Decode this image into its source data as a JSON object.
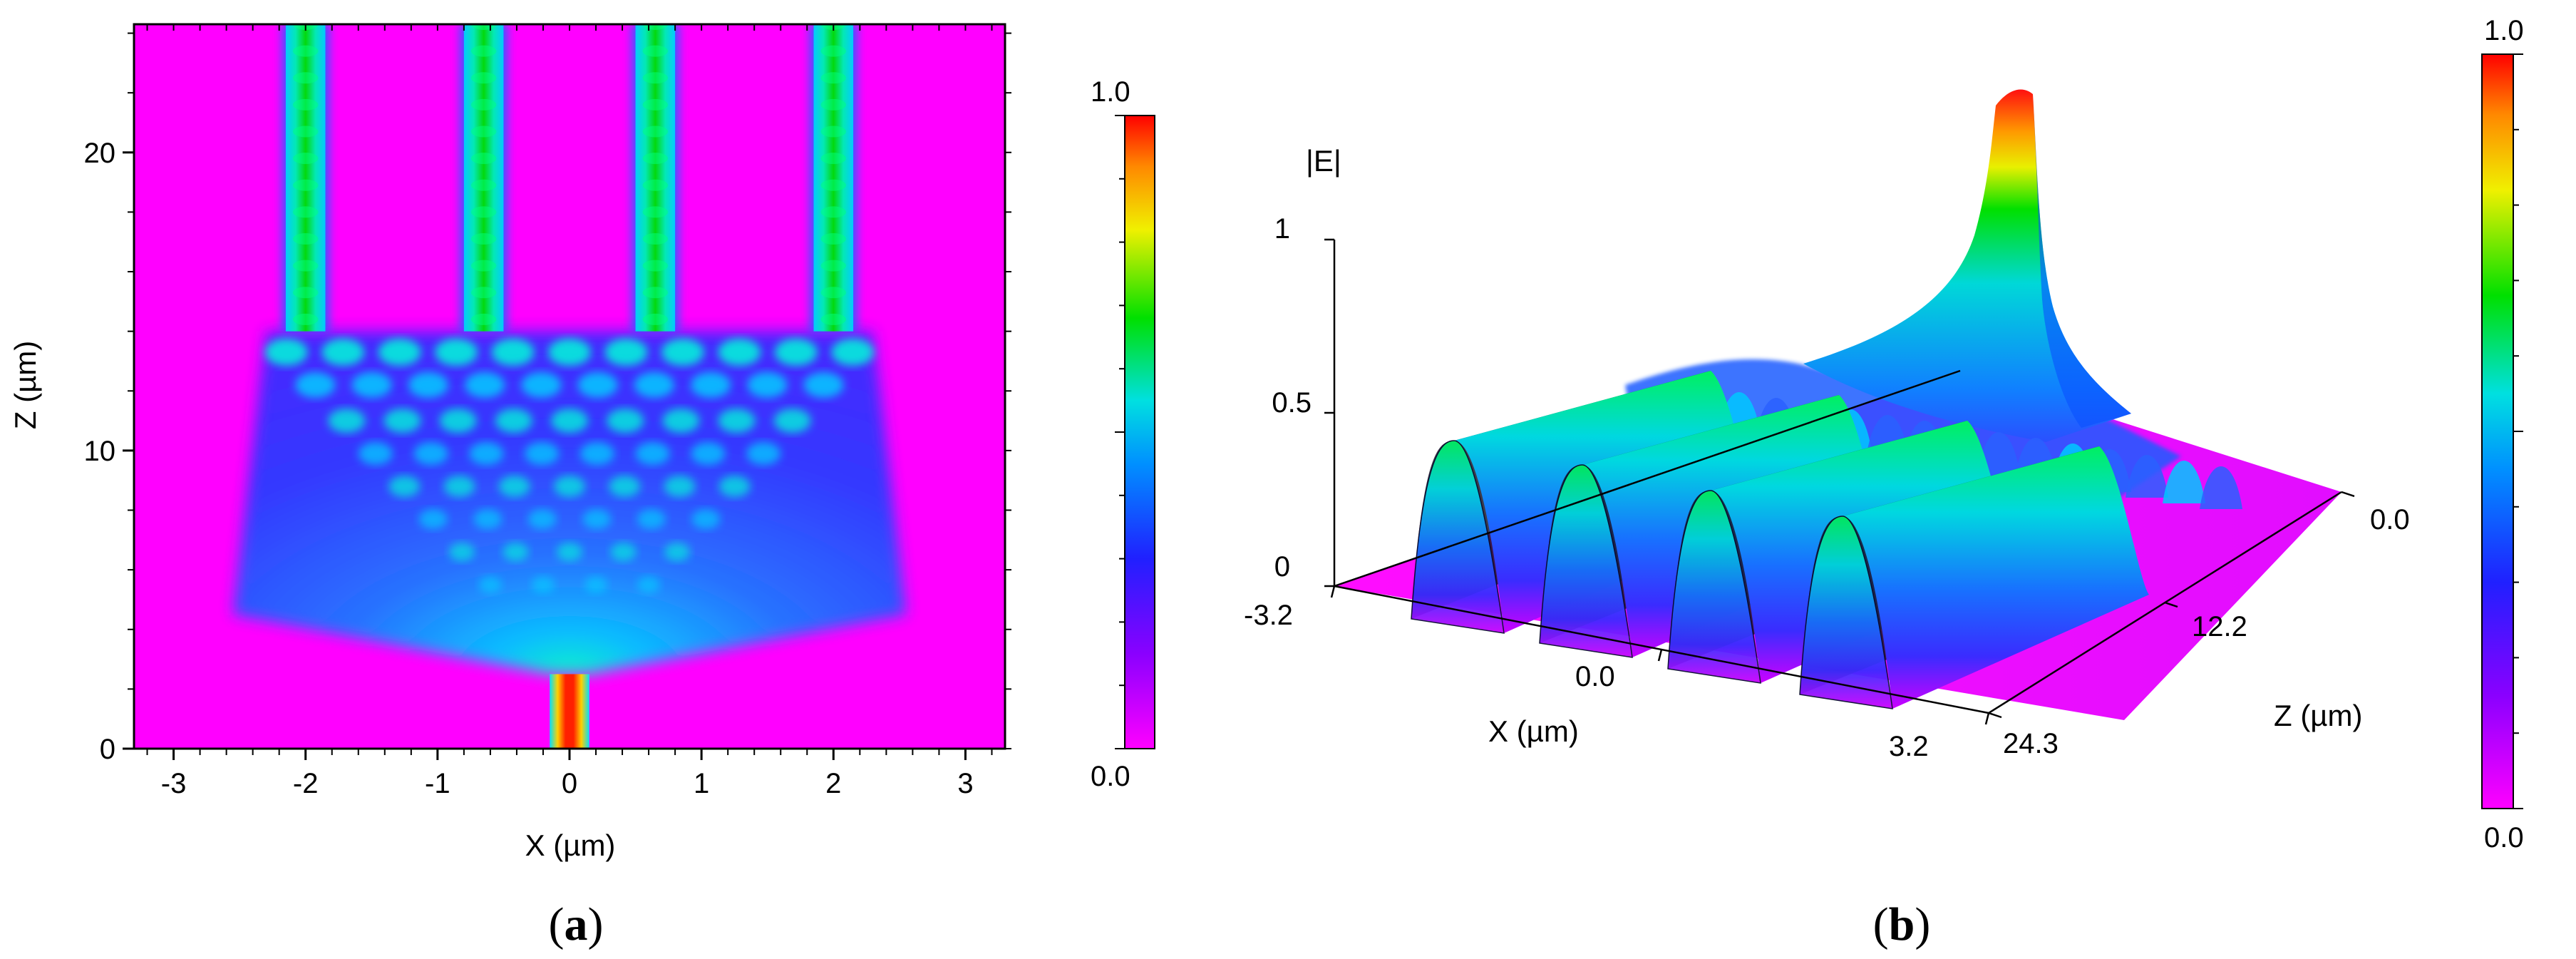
{
  "figure": {
    "label_a": "a",
    "label_b": "b"
  },
  "chart_data": [
    {
      "type": "heatmap",
      "xlabel": "X (µm)",
      "ylabel": "Z (µm)",
      "xlim": [
        -3.3,
        3.3
      ],
      "ylim": [
        0,
        24.3
      ],
      "x_ticks": [
        -3,
        -2,
        -1,
        0,
        1,
        2,
        3
      ],
      "y_ticks": [
        0,
        10,
        20
      ],
      "input_waveguide": {
        "x_center": 0,
        "width": 0.3,
        "z_end": 2.5
      },
      "fan_start_z": 4.5,
      "fan_end_z": 14,
      "output_waveguides_x": [
        -2.0,
        -0.65,
        0.65,
        2.0
      ],
      "output_waveguide_width": 0.3,
      "colorbar": {
        "min_label": "0.0",
        "max_label": "1.0",
        "min": 0.0,
        "max": 1.0
      },
      "colors": [
        "#ff00ff",
        "#3b00ff",
        "#0099ff",
        "#00e6c8",
        "#00e000",
        "#f2f200",
        "#ff8800",
        "#ff0000"
      ]
    },
    {
      "type": "surface",
      "zlabel": "|E|",
      "xlabel": "X (µm)",
      "ylabel": "Z (µm)",
      "z_ticks": [
        "0",
        "0.5",
        "1"
      ],
      "x_ticks": [
        "-3.2",
        "0.0",
        "3.2"
      ],
      "y_ticks": [
        "0.0",
        "12.2",
        "24.3"
      ],
      "output_peaks": 4,
      "input_peak_value": 1.0,
      "colorbar": {
        "min_label": "0.0",
        "max_label": "1.0",
        "min": 0.0,
        "max": 1.0
      }
    }
  ]
}
